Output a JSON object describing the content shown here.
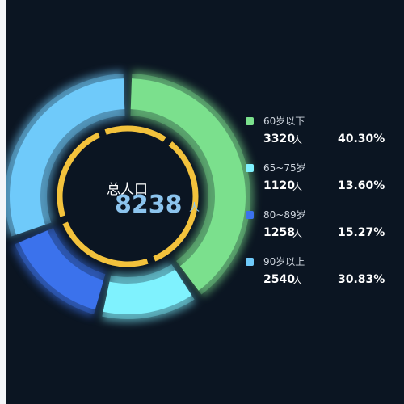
{
  "center": {
    "title": "总人口",
    "total": "8238",
    "unit": "人"
  },
  "count_unit": "人",
  "colors": {
    "background": "#0b1522",
    "inner_ring": "#f3c23c",
    "separator": "#0b1522"
  },
  "chart_data": {
    "type": "pie",
    "variant": "donut",
    "categories": [
      "60岁以下",
      "65~75岁",
      "80~89岁",
      "90岁以上"
    ],
    "values": [
      3320,
      1120,
      1258,
      2540
    ],
    "percent_labels": [
      "40.30%",
      "13.60%",
      "15.27%",
      "30.83%"
    ],
    "colors": [
      "#7be08d",
      "#7ff2fe",
      "#3b72ec",
      "#6fcafa"
    ],
    "legend_position": "right",
    "start_angle": "top",
    "direction": "clockwise"
  },
  "legend": [
    {
      "label": "60岁以下",
      "count": "3320",
      "percent": "40.30%",
      "color": "#7be08d"
    },
    {
      "label": "65~75岁",
      "count": "1120",
      "percent": "13.60%",
      "color": "#7ff2fe"
    },
    {
      "label": "80~89岁",
      "count": "1258",
      "percent": "15.27%",
      "color": "#3b72ec"
    },
    {
      "label": "90岁以上",
      "count": "2540",
      "percent": "30.83%",
      "color": "#6fcafa"
    }
  ]
}
